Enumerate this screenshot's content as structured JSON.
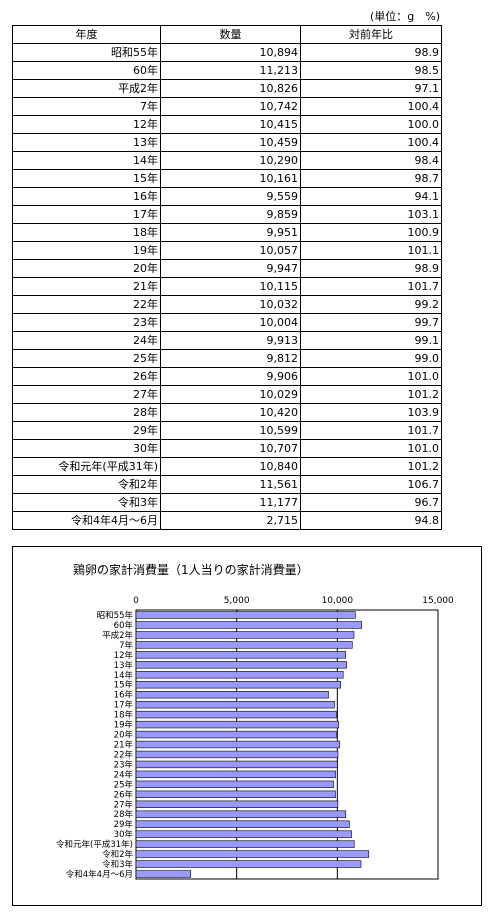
{
  "unit_note": "(単位：g　%)",
  "table": {
    "headers": [
      "年度",
      "数量",
      "対前年比"
    ],
    "rows": [
      {
        "year": "昭和55年",
        "qty": "10,894",
        "ratio": "98.9"
      },
      {
        "year": "60年",
        "qty": "11,213",
        "ratio": "98.5"
      },
      {
        "year": "平成2年",
        "qty": "10,826",
        "ratio": "97.1"
      },
      {
        "year": "7年",
        "qty": "10,742",
        "ratio": "100.4"
      },
      {
        "year": "12年",
        "qty": "10,415",
        "ratio": "100.0"
      },
      {
        "year": "13年",
        "qty": "10,459",
        "ratio": "100.4"
      },
      {
        "year": "14年",
        "qty": "10,290",
        "ratio": "98.4"
      },
      {
        "year": "15年",
        "qty": "10,161",
        "ratio": "98.7"
      },
      {
        "year": "16年",
        "qty": "9,559",
        "ratio": "94.1"
      },
      {
        "year": "17年",
        "qty": "9,859",
        "ratio": "103.1"
      },
      {
        "year": "18年",
        "qty": "9,951",
        "ratio": "100.9"
      },
      {
        "year": "19年",
        "qty": "10,057",
        "ratio": "101.1"
      },
      {
        "year": "20年",
        "qty": "9,947",
        "ratio": "98.9"
      },
      {
        "year": "21年",
        "qty": "10,115",
        "ratio": "101.7"
      },
      {
        "year": "22年",
        "qty": "10,032",
        "ratio": "99.2"
      },
      {
        "year": "23年",
        "qty": "10,004",
        "ratio": "99.7"
      },
      {
        "year": "24年",
        "qty": "9,913",
        "ratio": "99.1"
      },
      {
        "year": "25年",
        "qty": "9,812",
        "ratio": "99.0"
      },
      {
        "year": "26年",
        "qty": "9,906",
        "ratio": "101.0"
      },
      {
        "year": "27年",
        "qty": "10,029",
        "ratio": "101.2"
      },
      {
        "year": "28年",
        "qty": "10,420",
        "ratio": "103.9"
      },
      {
        "year": "29年",
        "qty": "10,599",
        "ratio": "101.7"
      },
      {
        "year": "30年",
        "qty": "10,707",
        "ratio": "101.0"
      },
      {
        "year": "令和元年(平成31年)",
        "qty": "10,840",
        "ratio": "101.2"
      },
      {
        "year": "令和2年",
        "qty": "11,561",
        "ratio": "106.7"
      },
      {
        "year": "令和3年",
        "qty": "11,177",
        "ratio": "96.7"
      },
      {
        "year": "令和4年4月～6月",
        "qty": "2,715",
        "ratio": "94.8"
      }
    ]
  },
  "chart_data": {
    "type": "bar",
    "orientation": "horizontal",
    "title": "鶏卵の家計消費量（1人当りの家計消費量）",
    "categories": [
      "昭和55年",
      "60年",
      "平成2年",
      "7年",
      "12年",
      "13年",
      "14年",
      "15年",
      "16年",
      "17年",
      "18年",
      "19年",
      "20年",
      "21年",
      "22年",
      "23年",
      "24年",
      "25年",
      "26年",
      "27年",
      "28年",
      "29年",
      "30年",
      "令和元年(平成31年)",
      "令和2年",
      "令和3年",
      "令和4年4月～6月"
    ],
    "values": [
      10894,
      11213,
      10826,
      10742,
      10415,
      10459,
      10290,
      10161,
      9559,
      9859,
      9951,
      10057,
      9947,
      10115,
      10032,
      10004,
      9913,
      9812,
      9906,
      10029,
      10420,
      10599,
      10707,
      10840,
      11561,
      11177,
      2715
    ],
    "xlim": [
      0,
      15000
    ],
    "xticks": [
      "0",
      "5,000",
      "10,000",
      "15,000"
    ],
    "xtick_values": [
      0,
      5000,
      10000,
      15000
    ],
    "grid": true,
    "bar_color": "#9999ff"
  }
}
